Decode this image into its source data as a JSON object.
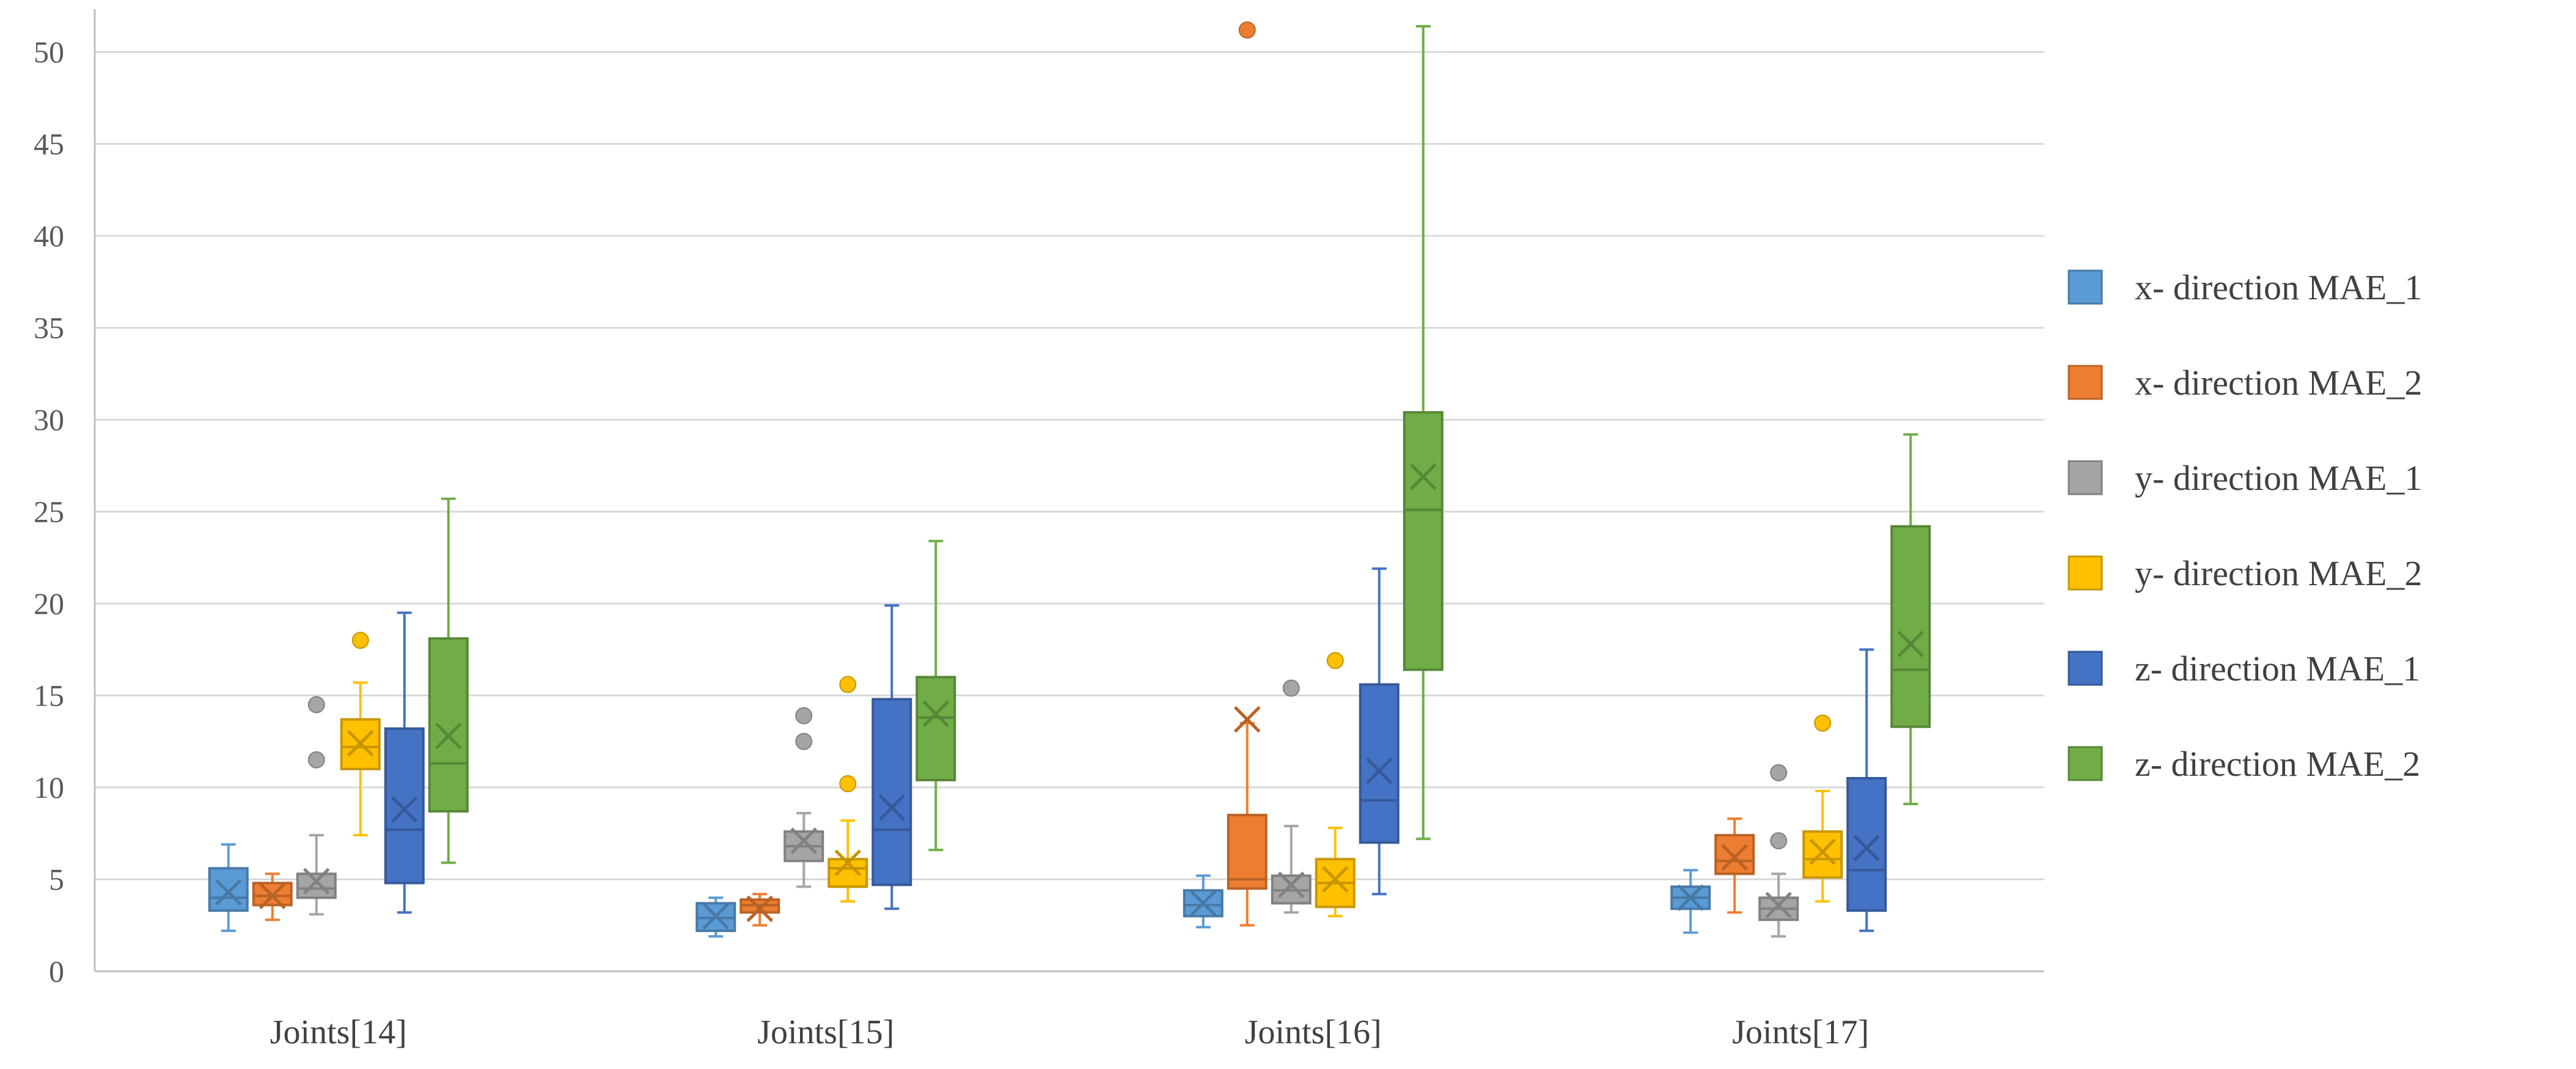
{
  "chart_data": {
    "type": "box",
    "title": "",
    "xlabel": "",
    "ylabel": "",
    "ylim": [
      0,
      52
    ],
    "yticks": [
      0,
      5,
      10,
      15,
      20,
      25,
      30,
      35,
      40,
      45,
      50
    ],
    "grid": true,
    "legend_position": "right",
    "categories": [
      "Joints[14]",
      "Joints[15]",
      "Joints[16]",
      "Joints[17]"
    ],
    "series": [
      {
        "name": "x- direction MAE_1",
        "color": "#5B9BD5",
        "stats": [
          {
            "min": 2.2,
            "q1": 3.3,
            "median": 4.0,
            "q3": 5.6,
            "max": 6.9,
            "mean": 4.3,
            "outliers": []
          },
          {
            "min": 1.9,
            "q1": 2.2,
            "median": 2.9,
            "q3": 3.7,
            "max": 4.0,
            "mean": 3.0,
            "outliers": []
          },
          {
            "min": 2.4,
            "q1": 3.0,
            "median": 3.6,
            "q3": 4.4,
            "max": 5.2,
            "mean": 3.7,
            "outliers": []
          },
          {
            "min": 2.1,
            "q1": 3.4,
            "median": 4.0,
            "q3": 4.6,
            "max": 5.5,
            "mean": 4.0,
            "outliers": []
          }
        ]
      },
      {
        "name": "x- direction MAE_2",
        "color": "#ED7D31",
        "stats": [
          {
            "min": 2.8,
            "q1": 3.6,
            "median": 4.1,
            "q3": 4.8,
            "max": 5.3,
            "mean": 4.1,
            "outliers": []
          },
          {
            "min": 2.5,
            "q1": 3.2,
            "median": 3.6,
            "q3": 3.9,
            "max": 4.2,
            "mean": 3.4,
            "outliers": []
          },
          {
            "min": 2.5,
            "q1": 4.5,
            "median": 5.0,
            "q3": 8.5,
            "max": 13.5,
            "mean": 13.7,
            "outliers": [
              51.2
            ]
          },
          {
            "min": 3.2,
            "q1": 5.3,
            "median": 6.0,
            "q3": 7.4,
            "max": 8.3,
            "mean": 6.2,
            "outliers": []
          }
        ]
      },
      {
        "name": "y- direction MAE_1",
        "color": "#A5A5A5",
        "stats": [
          {
            "min": 3.1,
            "q1": 4.0,
            "median": 4.5,
            "q3": 5.3,
            "max": 7.4,
            "mean": 4.9,
            "outliers": [
              11.5,
              14.5
            ]
          },
          {
            "min": 4.6,
            "q1": 6.0,
            "median": 6.8,
            "q3": 7.6,
            "max": 8.6,
            "mean": 7.1,
            "outliers": [
              12.5,
              13.9
            ]
          },
          {
            "min": 3.2,
            "q1": 3.7,
            "median": 4.4,
            "q3": 5.2,
            "max": 7.9,
            "mean": 4.7,
            "outliers": [
              15.4
            ]
          },
          {
            "min": 1.9,
            "q1": 2.8,
            "median": 3.4,
            "q3": 4.0,
            "max": 5.3,
            "mean": 3.6,
            "outliers": [
              7.1,
              10.8
            ]
          }
        ]
      },
      {
        "name": "y- direction MAE_2",
        "color": "#FFC000",
        "stats": [
          {
            "min": 7.4,
            "q1": 11.0,
            "median": 12.2,
            "q3": 13.7,
            "max": 15.7,
            "mean": 12.4,
            "outliers": [
              18.0
            ]
          },
          {
            "min": 3.8,
            "q1": 4.6,
            "median": 5.6,
            "q3": 6.1,
            "max": 8.2,
            "mean": 5.9,
            "outliers": [
              10.2,
              15.6
            ]
          },
          {
            "min": 3.0,
            "q1": 3.5,
            "median": 4.8,
            "q3": 6.1,
            "max": 7.8,
            "mean": 5.0,
            "outliers": [
              16.9
            ]
          },
          {
            "min": 3.8,
            "q1": 5.1,
            "median": 6.1,
            "q3": 7.6,
            "max": 9.8,
            "mean": 6.5,
            "outliers": [
              13.5
            ]
          }
        ]
      },
      {
        "name": "z- direction MAE_1",
        "color": "#4472C4",
        "stats": [
          {
            "min": 3.2,
            "q1": 4.8,
            "median": 7.7,
            "q3": 13.2,
            "max": 19.5,
            "mean": 8.8,
            "outliers": []
          },
          {
            "min": 3.4,
            "q1": 4.7,
            "median": 7.7,
            "q3": 14.8,
            "max": 19.9,
            "mean": 8.9,
            "outliers": []
          },
          {
            "min": 4.2,
            "q1": 7.0,
            "median": 9.3,
            "q3": 15.6,
            "max": 21.9,
            "mean": 10.9,
            "outliers": []
          },
          {
            "min": 2.2,
            "q1": 3.3,
            "median": 5.5,
            "q3": 10.5,
            "max": 17.5,
            "mean": 6.7,
            "outliers": []
          }
        ]
      },
      {
        "name": "z- direction MAE_2",
        "color": "#70AD47",
        "stats": [
          {
            "min": 5.9,
            "q1": 8.7,
            "median": 11.3,
            "q3": 18.1,
            "max": 25.7,
            "mean": 12.8,
            "outliers": []
          },
          {
            "min": 6.6,
            "q1": 10.4,
            "median": 13.8,
            "q3": 16.0,
            "max": 23.4,
            "mean": 14.0,
            "outliers": []
          },
          {
            "min": 7.2,
            "q1": 16.4,
            "median": 25.1,
            "q3": 30.4,
            "max": 51.4,
            "mean": 26.9,
            "outliers": []
          },
          {
            "min": 9.1,
            "q1": 13.3,
            "median": 16.4,
            "q3": 24.2,
            "max": 29.2,
            "mean": 17.8,
            "outliers": []
          }
        ]
      }
    ]
  }
}
